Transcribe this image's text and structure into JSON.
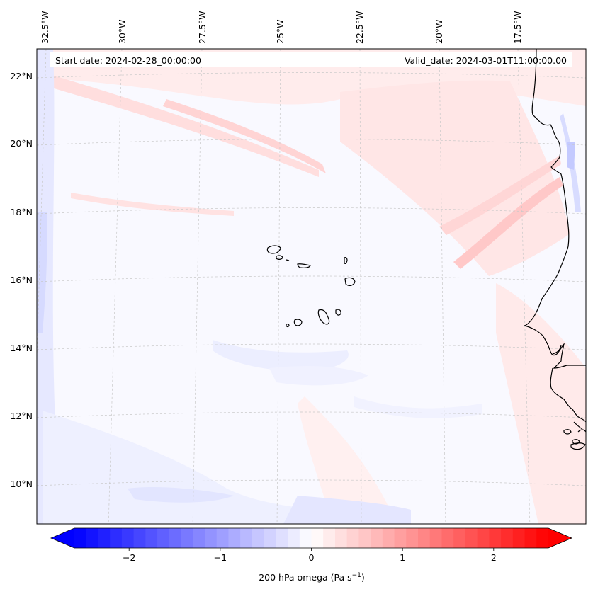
{
  "map": {
    "start_date": "Start date: 2024-02-28_00:00:00",
    "valid_date": "Valid_date: 2024-03-01T11:00:00.00",
    "lon_labels": [
      "32.5°W",
      "30°W",
      "27.5°W",
      "25°W",
      "22.5°W",
      "20°W",
      "17.5°W"
    ],
    "lat_labels": [
      "22°N",
      "20°N",
      "18°N",
      "16°N",
      "14°N",
      "12°N",
      "10°N"
    ],
    "colors": {
      "coast": "#000000",
      "grid": "#c8c8c8",
      "neg_max": "#0000ff",
      "pos_max": "#ff0000",
      "neutral": "#ffffff"
    }
  },
  "colorbar": {
    "label": "200 hPa omega (Pa s",
    "label_sup": "−1",
    "label_close": ")",
    "ticks": [
      "−2",
      "−1",
      "0",
      "1",
      "2"
    ],
    "tick_values": [
      -2,
      -1,
      0,
      1,
      2
    ],
    "vmin": -2.6,
    "vmax": 2.6,
    "levels": 40
  }
}
